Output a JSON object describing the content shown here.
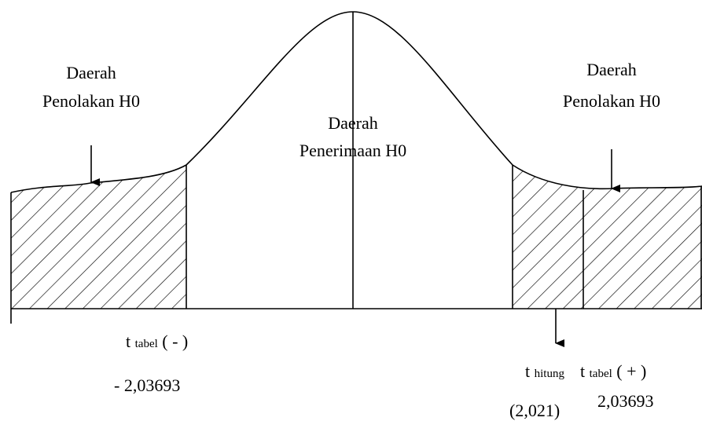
{
  "regions": [
    {
      "line1": "Daerah",
      "line2": "Penolakan H0"
    },
    {
      "line1": "Daerah",
      "line2": "Penerimaan H0"
    },
    {
      "line1": "Daerah",
      "line2": "Penolakan H0"
    }
  ],
  "t_tabel_neg": {
    "symbol": "t",
    "sub": "tabel",
    "sign": "( - )",
    "value": "- 2,03693"
  },
  "t_hitung": {
    "symbol": "t",
    "sub": "hitung",
    "value": "(2,021)"
  },
  "t_tabel_pos": {
    "symbol": "t",
    "sub": "tabel",
    "sign": "( + )",
    "value": "2,03693"
  }
}
